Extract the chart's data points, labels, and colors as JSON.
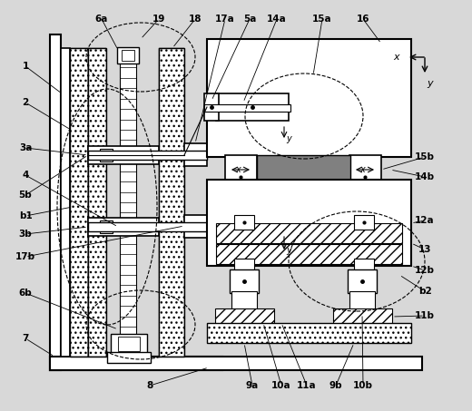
{
  "bg_color": "#d8d8d8",
  "figsize": [
    5.2,
    4.53
  ],
  "dpi": 100,
  "labels": {
    "top_left": [
      "6a",
      "19",
      "18",
      "17a",
      "5a",
      "14a",
      "15a",
      "16"
    ],
    "left_side": [
      "1",
      "2",
      "3a",
      "4",
      "5b",
      "b1",
      "3b",
      "17b",
      "6b",
      "7"
    ],
    "right_side": [
      "15b",
      "14b",
      "12a",
      "13",
      "12b",
      "b2",
      "11b"
    ],
    "bottom": [
      "8",
      "9a",
      "10a",
      "11a",
      "9b",
      "10b"
    ]
  }
}
